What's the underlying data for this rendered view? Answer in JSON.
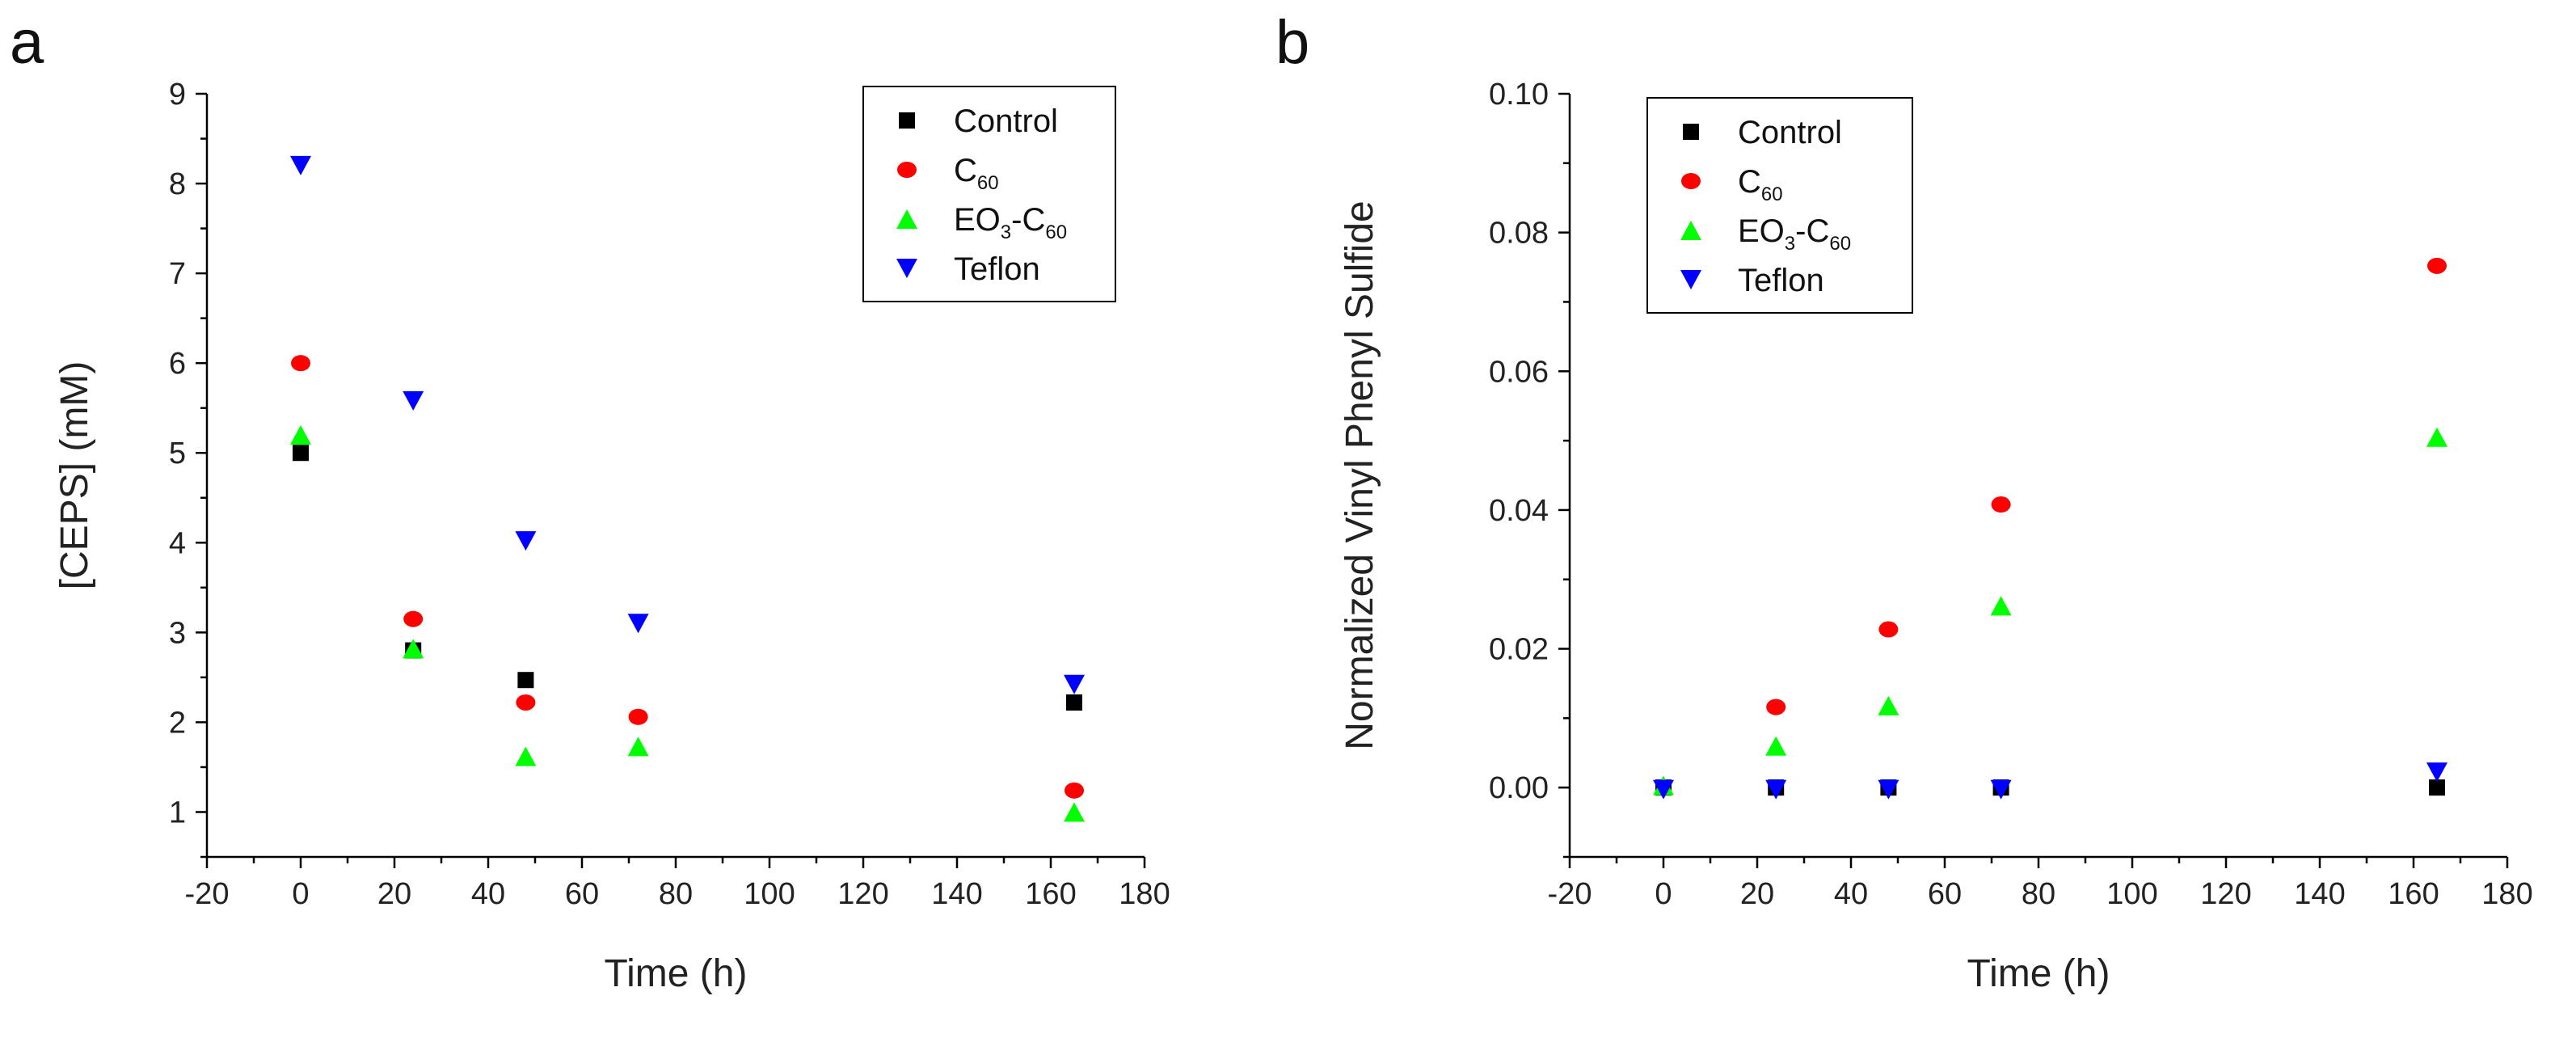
{
  "colors": {
    "Control": "#000000",
    "C60": "#ff0000",
    "EO3-C60": "#00ff00",
    "Teflon": "#0000ff"
  },
  "chart_data": [
    {
      "panel_label": "a",
      "type": "scatter",
      "xlabel": "Time (h)",
      "ylabel": "[CEPS] (mM)",
      "xlim": [
        -20,
        180
      ],
      "ylim": [
        0.5,
        9
      ],
      "xticks": [
        -20,
        0,
        20,
        40,
        60,
        80,
        100,
        120,
        140,
        160,
        180
      ],
      "xtick_labels": [
        "-20",
        "0",
        "20",
        "40",
        "60",
        "80",
        "100",
        "120",
        "140",
        "160",
        "180"
      ],
      "yticks": [
        1,
        2,
        3,
        4,
        5,
        6,
        7,
        8,
        9
      ],
      "ytick_labels": [
        "1",
        "2",
        "3",
        "4",
        "5",
        "6",
        "7",
        "8",
        "9"
      ],
      "legend_position": "top-right",
      "series": [
        {
          "name": "Control",
          "name_main": "Control",
          "marker": "square",
          "x": [
            0,
            24,
            48,
            165
          ],
          "y": [
            5.0,
            2.8,
            2.47,
            2.22
          ]
        },
        {
          "name": "C60",
          "name_main": "C",
          "name_sub": "60",
          "marker": "circle",
          "x": [
            0,
            24,
            48,
            72,
            165
          ],
          "y": [
            6.0,
            3.15,
            2.22,
            2.06,
            1.24
          ]
        },
        {
          "name": "EO3-C60",
          "name_parts": [
            "EO",
            "3",
            "-C",
            "60"
          ],
          "marker": "triangle-up",
          "x": [
            0,
            24,
            48,
            72,
            165
          ],
          "y": [
            5.2,
            2.82,
            1.62,
            1.73,
            1.0
          ]
        },
        {
          "name": "Teflon",
          "name_main": "Teflon",
          "marker": "triangle-down",
          "x": [
            0,
            24,
            48,
            72,
            165
          ],
          "y": [
            8.2,
            5.58,
            4.02,
            3.1,
            2.42
          ]
        }
      ]
    },
    {
      "panel_label": "b",
      "type": "scatter",
      "xlabel": "Time (h)",
      "ylabel": "Normalized Vinyl Phenyl Sulfide",
      "xlim": [
        -20,
        180
      ],
      "ylim": [
        -0.01,
        0.1
      ],
      "xticks": [
        -20,
        0,
        20,
        40,
        60,
        80,
        100,
        120,
        140,
        160,
        180
      ],
      "xtick_labels": [
        "-20",
        "0",
        "20",
        "40",
        "60",
        "80",
        "100",
        "120",
        "140",
        "160",
        "180"
      ],
      "yticks": [
        0,
        0.02,
        0.04,
        0.06,
        0.08,
        0.1
      ],
      "ytick_labels": [
        "0.00",
        "0.02",
        "0.04",
        "0.06",
        "0.08",
        "0.10"
      ],
      "legend_position": "top-left",
      "series": [
        {
          "name": "Control",
          "name_main": "Control",
          "marker": "square",
          "x": [
            0,
            24,
            48,
            72,
            165
          ],
          "y": [
            0,
            0,
            0,
            0,
            0
          ]
        },
        {
          "name": "C60",
          "name_main": "C",
          "name_sub": "60",
          "marker": "circle",
          "x": [
            24,
            48,
            72,
            165
          ],
          "y": [
            0.0116,
            0.0228,
            0.0408,
            0.0752
          ]
        },
        {
          "name": "EO3-C60",
          "name_parts": [
            "EO",
            "3",
            "-C",
            "60"
          ],
          "marker": "triangle-up",
          "x": [
            0,
            24,
            48,
            72,
            165
          ],
          "y": [
            0.0003,
            0.006,
            0.0118,
            0.0262,
            0.0505
          ]
        },
        {
          "name": "Teflon",
          "name_main": "Teflon",
          "marker": "triangle-down",
          "x": [
            0,
            24,
            48,
            72,
            165
          ],
          "y": [
            -0.0003,
            -0.0003,
            -0.0003,
            -0.0003,
            0.0022
          ]
        }
      ]
    }
  ]
}
